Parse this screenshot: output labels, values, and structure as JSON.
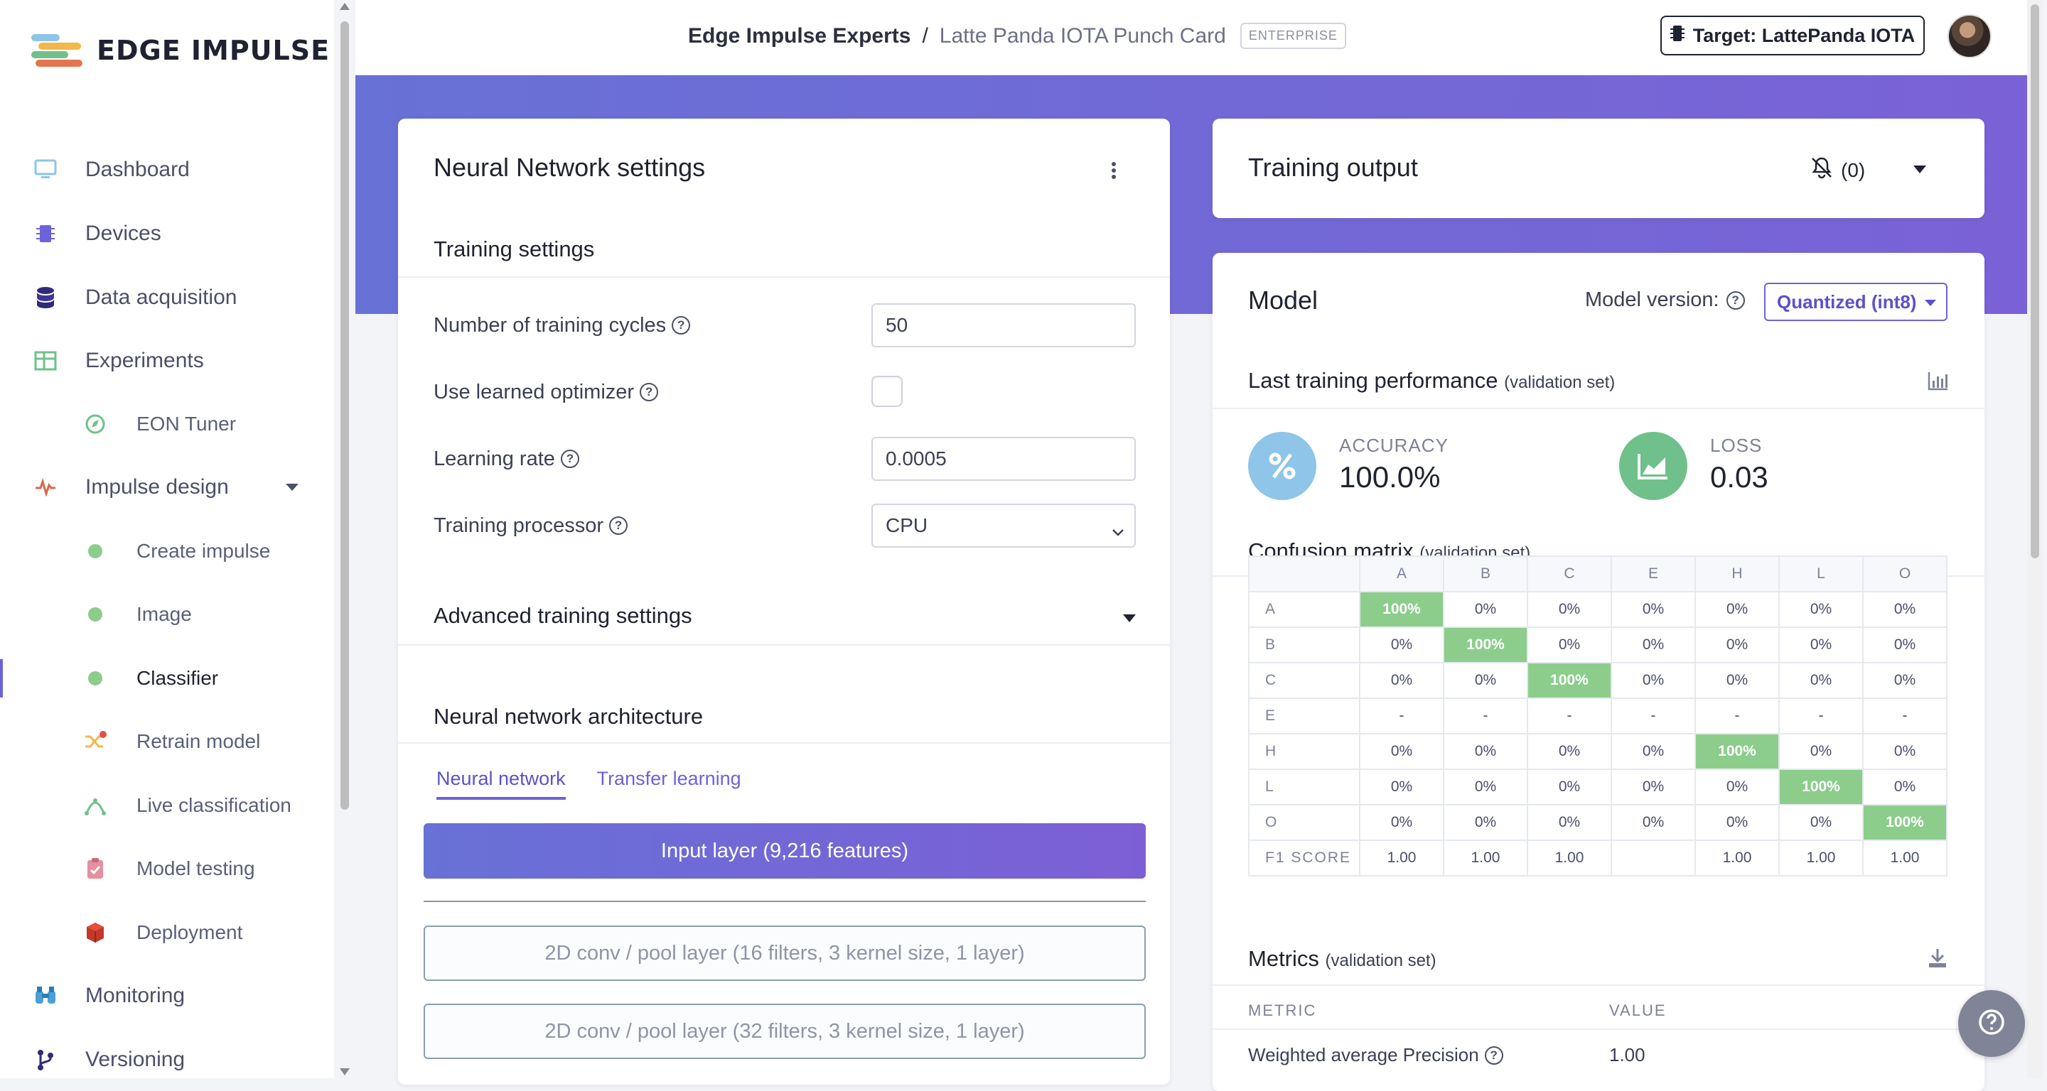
{
  "app": {
    "brand": "EDGE IMPULSE"
  },
  "sidebar": {
    "items": [
      {
        "label": "Dashboard"
      },
      {
        "label": "Devices"
      },
      {
        "label": "Data acquisition"
      },
      {
        "label": "Experiments"
      },
      {
        "label": "EON Tuner"
      },
      {
        "label": "Impulse design"
      },
      {
        "label": "Create impulse"
      },
      {
        "label": "Image"
      },
      {
        "label": "Classifier"
      },
      {
        "label": "Retrain model"
      },
      {
        "label": "Live classification"
      },
      {
        "label": "Model testing"
      },
      {
        "label": "Deployment"
      },
      {
        "label": "Monitoring"
      },
      {
        "label": "Versioning"
      }
    ],
    "active": "Classifier"
  },
  "header": {
    "org": "Edge Impulse Experts",
    "separator": "/",
    "project": "Latte Panda IOTA Punch Card",
    "badge": "ENTERPRISE",
    "target_label": "Target: LattePanda IOTA"
  },
  "nn_settings": {
    "title": "Neural Network settings",
    "training_settings_title": "Training settings",
    "fields": {
      "cycles_label": "Number of training cycles",
      "cycles_value": "50",
      "optimizer_label": "Use learned optimizer",
      "optimizer_checked": false,
      "lr_label": "Learning rate",
      "lr_value": "0.0005",
      "processor_label": "Training processor",
      "processor_value": "CPU"
    },
    "advanced_title": "Advanced training settings",
    "architecture_title": "Neural network architecture",
    "tabs": [
      "Neural network",
      "Transfer learning"
    ],
    "active_tab": "Neural network",
    "layers": [
      "Input layer (9,216 features)",
      "2D conv / pool layer (16 filters, 3 kernel size, 1 layer)",
      "2D conv / pool layer (32 filters, 3 kernel size, 1 layer)"
    ]
  },
  "training_output": {
    "title": "Training output",
    "notifications": "(0)"
  },
  "model": {
    "title": "Model",
    "version_label": "Model version:",
    "version_value": "Quantized (int8)",
    "perf_title": "Last training performance",
    "perf_subtitle": "(validation set)",
    "accuracy_label": "ACCURACY",
    "accuracy_value": "100.0%",
    "loss_label": "LOSS",
    "loss_value": "0.03",
    "cm_title": "Confusion matrix",
    "cm_subtitle": "(validation set)",
    "metrics_title": "Metrics",
    "metrics_subtitle": "(validation set)",
    "metrics_headers": [
      "METRIC",
      "VALUE"
    ],
    "metrics_first_row": {
      "metric": "Weighted average Precision",
      "value": "1.00"
    }
  },
  "confusion_matrix": {
    "columns": [
      "A",
      "B",
      "C",
      "E",
      "H",
      "L",
      "O"
    ],
    "rows": [
      {
        "label": "A",
        "cells": [
          "100%",
          "0%",
          "0%",
          "0%",
          "0%",
          "0%",
          "0%"
        ]
      },
      {
        "label": "B",
        "cells": [
          "0%",
          "100%",
          "0%",
          "0%",
          "0%",
          "0%",
          "0%"
        ]
      },
      {
        "label": "C",
        "cells": [
          "0%",
          "0%",
          "100%",
          "0%",
          "0%",
          "0%",
          "0%"
        ]
      },
      {
        "label": "E",
        "cells": [
          "-",
          "-",
          "-",
          "-",
          "-",
          "-",
          "-"
        ]
      },
      {
        "label": "H",
        "cells": [
          "0%",
          "0%",
          "0%",
          "0%",
          "100%",
          "0%",
          "0%"
        ]
      },
      {
        "label": "L",
        "cells": [
          "0%",
          "0%",
          "0%",
          "0%",
          "0%",
          "100%",
          "0%"
        ]
      },
      {
        "label": "O",
        "cells": [
          "0%",
          "0%",
          "0%",
          "0%",
          "0%",
          "0%",
          "100%"
        ]
      }
    ],
    "f1": {
      "label": "F1 SCORE",
      "cells": [
        "1.00",
        "1.00",
        "1.00",
        "",
        "1.00",
        "1.00",
        "1.00"
      ]
    }
  },
  "colors": {
    "accent": "#6c63d9",
    "hero_start": "#6871d6",
    "hero_end": "#7a62d6",
    "matrix_hit": "#8ccd8c",
    "accuracy_circle": "#8ec5e8",
    "loss_circle": "#6fc08a"
  },
  "icons": {
    "dashboard": "monitor-icon",
    "devices": "chip-icon",
    "data": "database-icon",
    "experiments": "table-icon",
    "eon": "compass-icon",
    "impulse": "pulse-icon",
    "retrain": "shuffle-icon",
    "live": "nodes-icon",
    "testing": "clipboard-check-icon",
    "deployment": "cube-icon",
    "monitoring": "binoculars-icon",
    "versioning": "branch-icon"
  }
}
